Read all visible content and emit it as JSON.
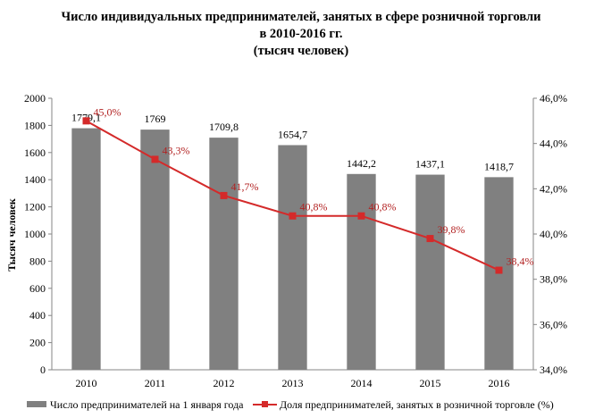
{
  "chart_data": {
    "type": "bar",
    "title": [
      "Число индивидуальных предпринимателей, занятых в сфере розничной торговли",
      "в 2010-2016 гг.",
      "(тысяч человек)"
    ],
    "categories": [
      "2010",
      "2011",
      "2012",
      "2013",
      "2014",
      "2015",
      "2016"
    ],
    "ylabel": "Тысяч человек",
    "ylim": [
      0,
      2000
    ],
    "y2lim": [
      34,
      46
    ],
    "y_ticks": [
      "0",
      "200",
      "400",
      "600",
      "800",
      "1000",
      "1200",
      "1400",
      "1600",
      "1800",
      "2000"
    ],
    "y2_ticks": [
      "34,0%",
      "36,0%",
      "38,0%",
      "40,0%",
      "42,0%",
      "44,0%",
      "46,0%"
    ],
    "grid": false,
    "legend_position": "bottom",
    "series": [
      {
        "name": "Число предпринимателей на 1 января года",
        "type": "bar",
        "axis": "left",
        "color": "#808080",
        "values": [
          1779.1,
          1769,
          1709.8,
          1654.7,
          1442.2,
          1437.1,
          1418.7
        ],
        "labels": [
          "1779,1",
          "1769",
          "1709,8",
          "1654,7",
          "1442,2",
          "1437,1",
          "1418,7"
        ]
      },
      {
        "name": "Доля предпринимателей, занятых в розничной торговле (%)",
        "type": "line",
        "axis": "right",
        "color": "#d42a2a",
        "values": [
          45.0,
          43.3,
          41.7,
          40.8,
          40.8,
          39.8,
          38.4
        ],
        "labels": [
          "45,0%",
          "43,3%",
          "41,7%",
          "40,8%",
          "40,8%",
          "39,8%",
          "38,4%"
        ]
      }
    ]
  }
}
